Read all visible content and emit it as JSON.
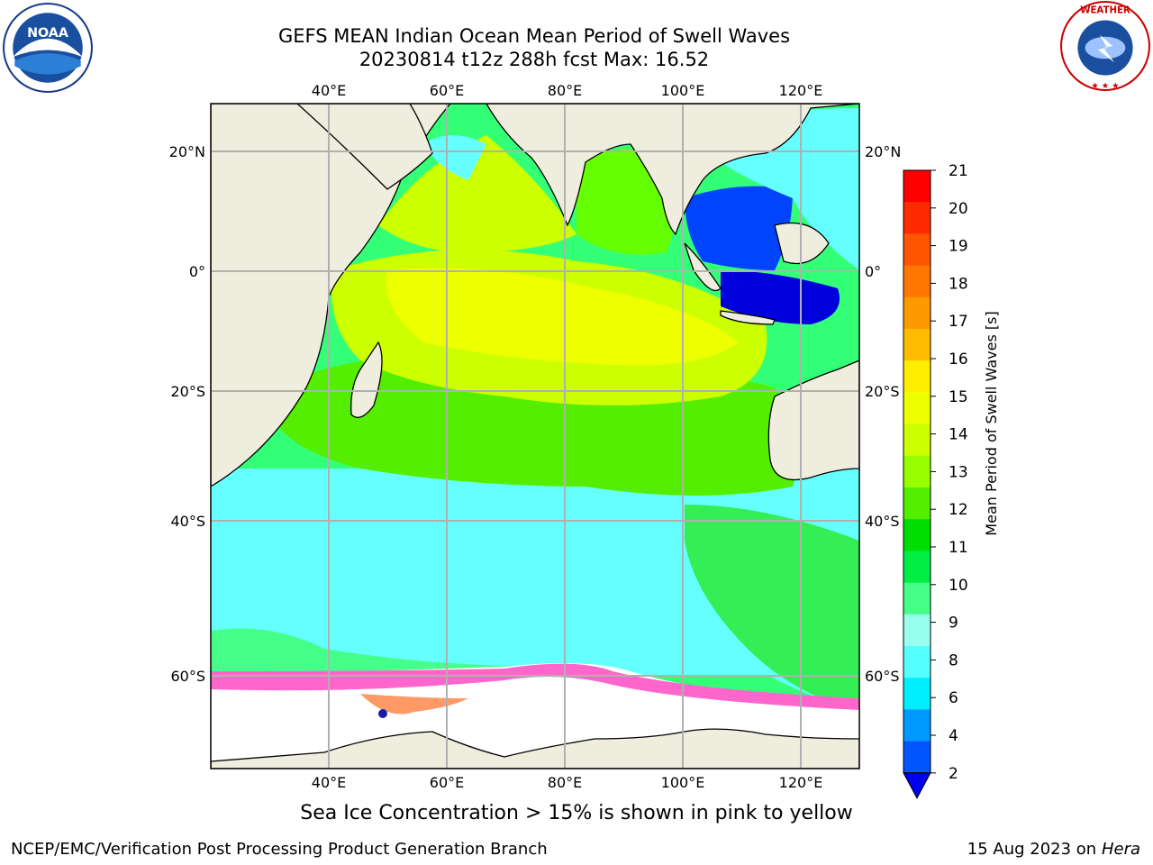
{
  "title_line1": "GEFS MEAN Indian Ocean Mean Period of Swell Waves",
  "title_line2": "20230814 t12z 288h fcst   Max: 16.52",
  "caption": "Sea Ice Concentration > 15% is shown in pink to yellow",
  "footer_left": "NCEP/EMC/Verification Post Processing Product Generation Branch",
  "footer_right_date": "15 Aug 2023 on",
  "footer_right_host": "Hera",
  "logos": {
    "left": "NOAA",
    "right": "NATIONAL WEATHER SERVICE"
  },
  "map": {
    "lon_ticks": [
      "40°E",
      "60°E",
      "80°E",
      "100°E",
      "120°E"
    ],
    "lat_ticks": [
      "20°N",
      "0°",
      "20°S",
      "40°S",
      "60°S"
    ],
    "land_color": "#efedde",
    "ocean_colors": [
      "#00ffff",
      "#66ffff",
      "#33ff77",
      "#00e600",
      "#66ff00",
      "#ccff00",
      "#eeff00",
      "#0033ff"
    ],
    "ice_colors": [
      "#ff33cc",
      "#ff66cc",
      "#ff9966",
      "#ffcc33"
    ]
  },
  "colorbar": {
    "label": "Mean Period of Swell Waves [s]",
    "ticks": [
      "21",
      "20",
      "19",
      "18",
      "17",
      "16",
      "15",
      "14",
      "13",
      "12",
      "11",
      "10",
      "9",
      "8",
      "6",
      "4",
      "2"
    ],
    "colors": [
      "#ff0000",
      "#ff2a00",
      "#ff5500",
      "#ff7700",
      "#ff9900",
      "#ffbb00",
      "#ffee00",
      "#eeff00",
      "#ccff00",
      "#99ff00",
      "#55ee00",
      "#00dd00",
      "#00ee44",
      "#44ff88",
      "#99ffee",
      "#55ffff",
      "#00eeff",
      "#0099ff",
      "#0055ff",
      "#0000ee"
    ]
  }
}
